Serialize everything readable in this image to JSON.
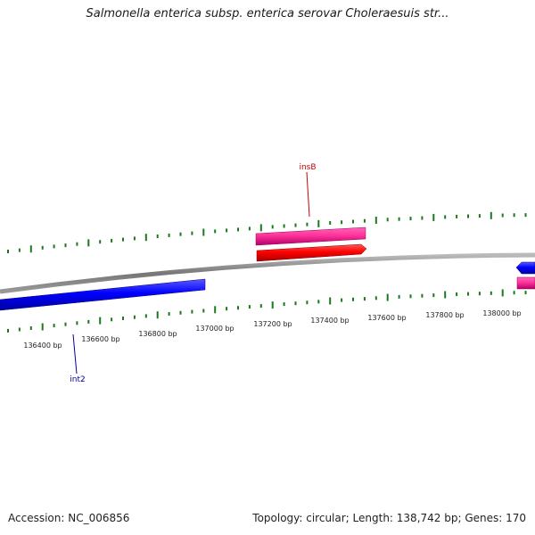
{
  "title": "Salmonella enterica subsp. enterica serovar Choleraesuis str...",
  "footer": {
    "accession": "Accession: NC_006856",
    "stats": "Topology: circular; Length: 138,742 bp; Genes: 170"
  },
  "ruler": {
    "labels": [
      "136400 bp",
      "136600 bp",
      "136800 bp",
      "137000 bp",
      "137200 bp",
      "137400 bp",
      "137600 bp",
      "137800 bp",
      "138000 bp"
    ]
  },
  "genes": [
    {
      "name": "insB",
      "strand": "forward",
      "color": "#ff3399"
    },
    {
      "name": "",
      "strand": "forward",
      "color": "#ff0000"
    },
    {
      "name": "int2",
      "strand": "reverse",
      "color": "#0000ff"
    },
    {
      "name": "",
      "strand": "reverse",
      "color": "#0000ff"
    },
    {
      "name": "",
      "strand": "forward",
      "color": "#ff3399"
    }
  ],
  "colors": {
    "backbone": "#888888",
    "ticks": "#1a7a1a",
    "insB_label": "#cc0000",
    "int2_label": "#000099"
  }
}
